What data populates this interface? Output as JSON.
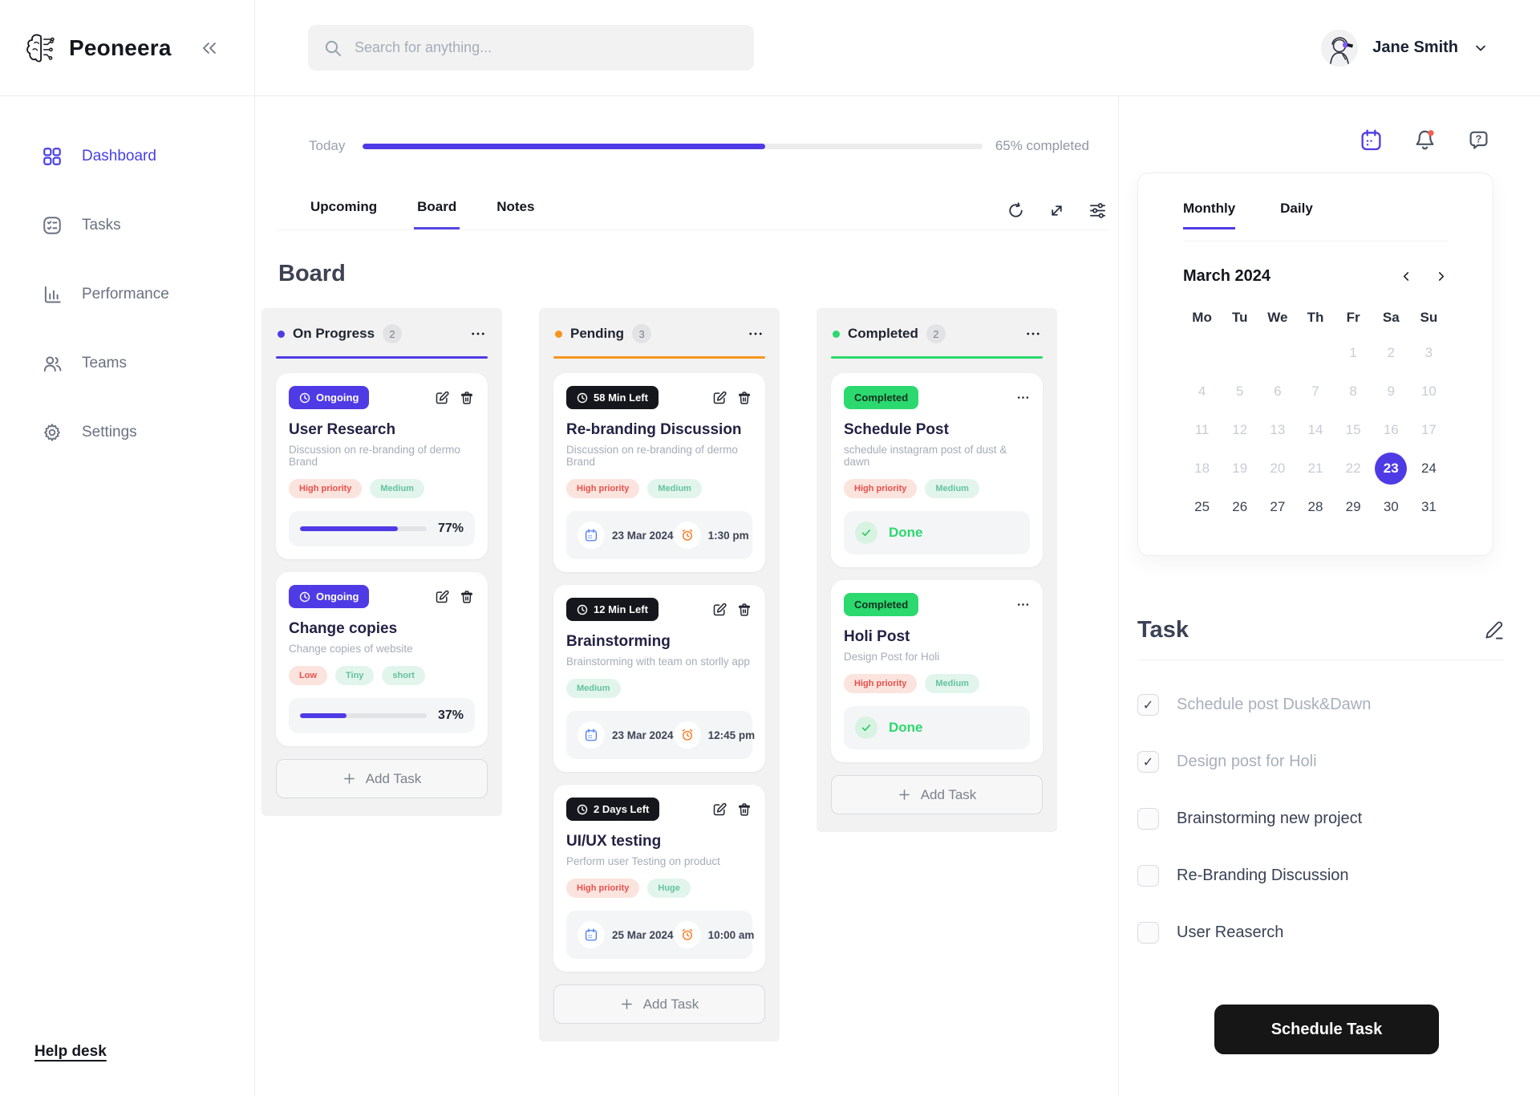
{
  "app": {
    "name": "Peoneera"
  },
  "header": {
    "search_placeholder": "Search for anything...",
    "user_name": "Jane Smith"
  },
  "sidebar": {
    "items": [
      {
        "label": "Dashboard",
        "active": true
      },
      {
        "label": "Tasks",
        "active": false
      },
      {
        "label": "Performance",
        "active": false
      },
      {
        "label": "Teams",
        "active": false
      },
      {
        "label": "Settings",
        "active": false
      }
    ],
    "help_link": "Help desk"
  },
  "overview": {
    "day_label": "Today",
    "percent": 65,
    "status_text": "65% completed"
  },
  "view_tabs": [
    {
      "label": "Upcoming",
      "active": false
    },
    {
      "label": "Board",
      "active": true
    },
    {
      "label": "Notes",
      "active": false
    }
  ],
  "board": {
    "title": "Board",
    "columns": [
      {
        "name": "On Progress",
        "count": "2",
        "accent": "#4F3BE5",
        "add_task_label": "Add Task",
        "cards": [
          {
            "status": "Ongoing",
            "title": "User Research",
            "description": "Discussion on re-branding of dermo Brand",
            "tags": [
              {
                "label": "High priority",
                "type": "red"
              },
              {
                "label": "Medium",
                "type": "green"
              }
            ],
            "progress": 77,
            "progress_text": "77%"
          },
          {
            "status": "Ongoing",
            "title": "Change copies",
            "description": "Change copies of website",
            "tags": [
              {
                "label": "Low",
                "type": "red"
              },
              {
                "label": "Tiny",
                "type": "green"
              },
              {
                "label": "short",
                "type": "green"
              }
            ],
            "progress": 37,
            "progress_text": "37%"
          }
        ]
      },
      {
        "name": "Pending",
        "count": "3",
        "accent": "#F7941E",
        "add_task_label": "Add Task",
        "cards": [
          {
            "status": "58 Min Left",
            "title": "Re-branding Discussion",
            "description": "Discussion on re-branding of dermo Brand",
            "tags": [
              {
                "label": "High priority",
                "type": "red"
              },
              {
                "label": "Medium",
                "type": "green"
              }
            ],
            "date": "23 Mar 2024",
            "time": "1:30 pm"
          },
          {
            "status": "12 Min Left",
            "title": "Brainstorming",
            "description": "Brainstorming with team on storlly app",
            "tags": [
              {
                "label": "Medium",
                "type": "green"
              }
            ],
            "date": "23 Mar 2024",
            "time": "12:45 pm"
          },
          {
            "status": "2 Days Left",
            "title": "UI/UX testing",
            "description": "Perform user Testing on product",
            "tags": [
              {
                "label": "High priority",
                "type": "red"
              },
              {
                "label": "Huge",
                "type": "green"
              }
            ],
            "date": "25 Mar 2024",
            "time": "10:00 am"
          }
        ]
      },
      {
        "name": "Completed",
        "count": "2",
        "accent": "#2BD96F",
        "add_task_label": "Add Task",
        "cards": [
          {
            "status": "Completed",
            "title": "Schedule Post",
            "description": "schedule instagram post of dust & dawn",
            "tags": [
              {
                "label": "High priority",
                "type": "red"
              },
              {
                "label": "Medium",
                "type": "green"
              }
            ],
            "done_label": "Done"
          },
          {
            "status": "Completed",
            "title": "Holi Post",
            "description": "Design Post for Holi",
            "tags": [
              {
                "label": "High priority",
                "type": "red"
              },
              {
                "label": "Medium",
                "type": "green"
              }
            ],
            "done_label": "Done"
          }
        ]
      }
    ]
  },
  "calendar": {
    "tabs": [
      {
        "label": "Monthly",
        "active": true
      },
      {
        "label": "Daily",
        "active": false
      }
    ],
    "month_title": "March 2024",
    "weekdays": [
      "Mo",
      "Tu",
      "We",
      "Th",
      "Fr",
      "Sa",
      "Su"
    ],
    "days": [
      "1",
      "2",
      "3",
      "4",
      "5",
      "6",
      "7",
      "8",
      "9",
      "10",
      "11",
      "12",
      "13",
      "14",
      "15",
      "16",
      "17",
      "18",
      "19",
      "20",
      "21",
      "22",
      "23",
      "24",
      "25",
      "26",
      "27",
      "28",
      "29",
      "30",
      "31"
    ],
    "selected_day": "23"
  },
  "tasks_panel": {
    "title": "Task",
    "items": [
      {
        "label": "Schedule post Dusk&Dawn",
        "checked": true
      },
      {
        "label": "Design post for Holi",
        "checked": true
      },
      {
        "label": "Brainstorming new project",
        "checked": false
      },
      {
        "label": "Re-Branding Discussion",
        "checked": false
      },
      {
        "label": "User Reaserch",
        "checked": false
      }
    ],
    "button_label": "Schedule Task"
  },
  "colors": {
    "primary": "#4F3BE5",
    "pending_accent": "#F7941E",
    "success": "#2BD96F",
    "tag_red_bg": "#FBE3DE",
    "tag_red_text": "#E8504A",
    "tag_green_bg": "#E2F5EC",
    "tag_green_text": "#63C39D",
    "notification_dot": "#F4604C"
  }
}
